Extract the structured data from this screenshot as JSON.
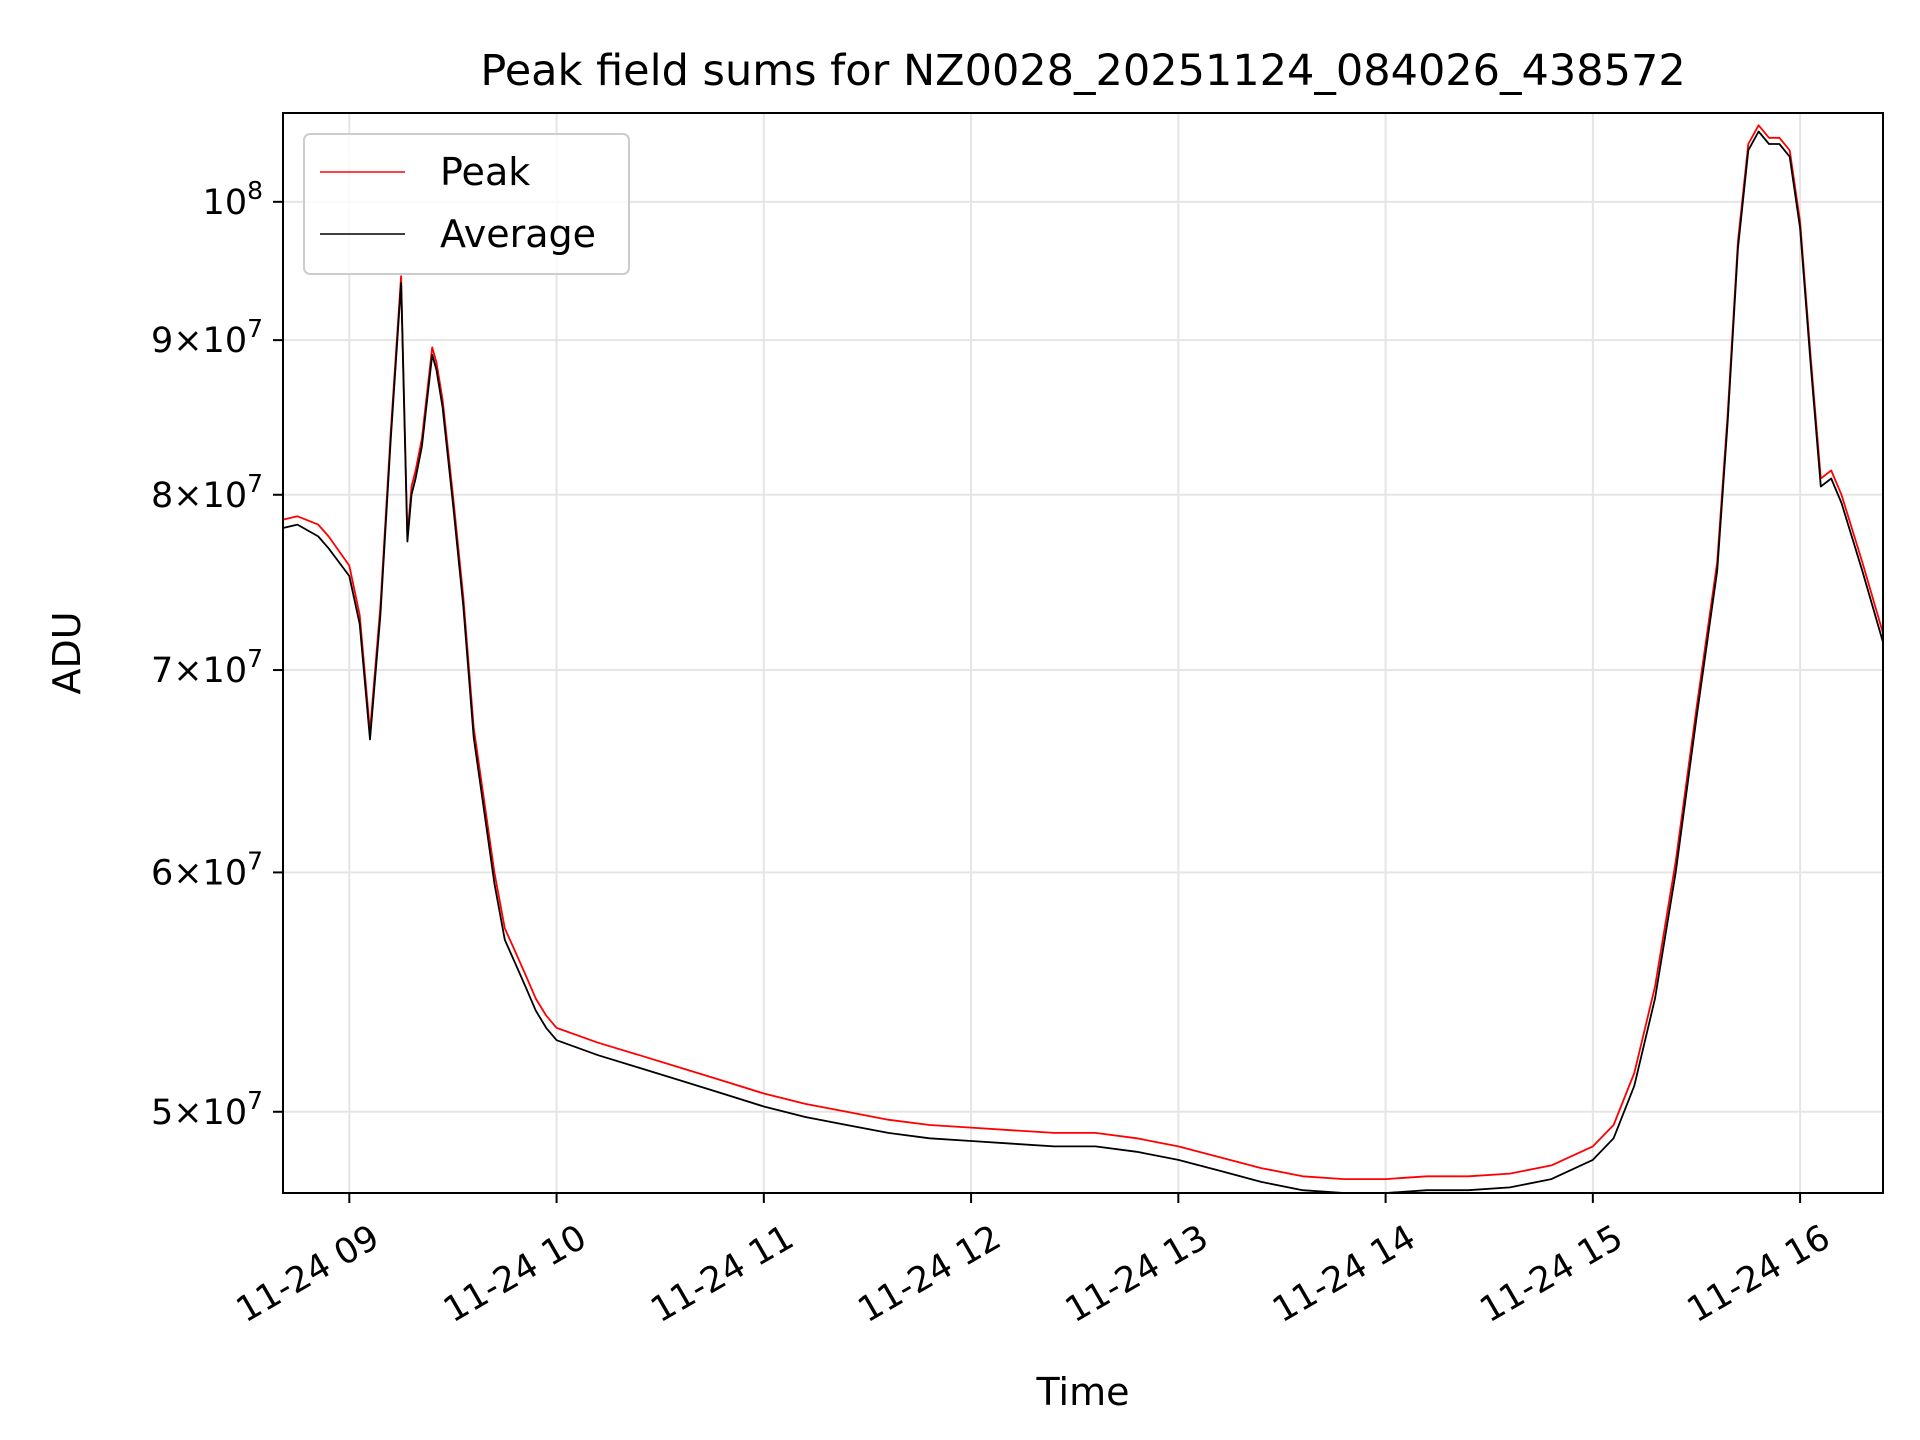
{
  "chart_data": {
    "type": "line",
    "title": "Peak field sums for NZ0028_20251124_084026_438572",
    "xlabel": "Time",
    "ylabel": "ADU",
    "yscale": "log",
    "xlim": [
      8.68,
      16.4
    ],
    "ylim": [
      47000000,
      107000000
    ],
    "grid": true,
    "legend_position": "top-left",
    "x_ticks": [
      {
        "value": 9,
        "label": "11-24 09"
      },
      {
        "value": 10,
        "label": "11-24 10"
      },
      {
        "value": 11,
        "label": "11-24 11"
      },
      {
        "value": 12,
        "label": "11-24 12"
      },
      {
        "value": 13,
        "label": "11-24 13"
      },
      {
        "value": 14,
        "label": "11-24 14"
      },
      {
        "value": 15,
        "label": "11-24 15"
      },
      {
        "value": 16,
        "label": "11-24 16"
      }
    ],
    "y_ticks": [
      {
        "value": 50000000,
        "mant": "5",
        "base": "10",
        "exp": "7"
      },
      {
        "value": 60000000,
        "mant": "6",
        "base": "10",
        "exp": "7"
      },
      {
        "value": 70000000,
        "mant": "7",
        "base": "10",
        "exp": "7"
      },
      {
        "value": 80000000,
        "mant": "8",
        "base": "10",
        "exp": "7"
      },
      {
        "value": 90000000,
        "mant": "9",
        "base": "10",
        "exp": "7"
      },
      {
        "value": 100000000,
        "mant": "",
        "base": "10",
        "exp": "8"
      }
    ],
    "series": [
      {
        "name": "Peak",
        "color": "#ff0000",
        "x": [
          8.68,
          8.75,
          8.85,
          8.9,
          9.0,
          9.05,
          9.1,
          9.15,
          9.2,
          9.25,
          9.28,
          9.3,
          9.32,
          9.35,
          9.4,
          9.42,
          9.45,
          9.5,
          9.55,
          9.6,
          9.7,
          9.75,
          9.8,
          9.85,
          9.9,
          9.95,
          10.0,
          10.2,
          10.4,
          10.6,
          10.8,
          11.0,
          11.2,
          11.4,
          11.6,
          11.8,
          12.0,
          12.2,
          12.4,
          12.6,
          12.8,
          13.0,
          13.2,
          13.4,
          13.6,
          13.8,
          14.0,
          14.2,
          14.4,
          14.6,
          14.8,
          15.0,
          15.1,
          15.2,
          15.3,
          15.4,
          15.5,
          15.6,
          15.65,
          15.7,
          15.75,
          15.8,
          15.85,
          15.9,
          15.95,
          16.0,
          16.05,
          16.1,
          16.15,
          16.2,
          16.3,
          16.4
        ],
        "values": [
          78500000,
          78700000,
          78200000,
          77500000,
          75800000,
          73000000,
          66800000,
          73500000,
          84000000,
          94500000,
          77500000,
          80500000,
          81500000,
          83500000,
          89500000,
          88500000,
          86000000,
          80000000,
          74000000,
          67000000,
          60000000,
          57500000,
          56500000,
          55500000,
          54500000,
          53800000,
          53300000,
          52700000,
          52200000,
          51700000,
          51200000,
          50700000,
          50300000,
          50000000,
          49700000,
          49500000,
          49400000,
          49300000,
          49200000,
          49200000,
          49000000,
          48700000,
          48300000,
          47900000,
          47600000,
          47500000,
          47500000,
          47600000,
          47600000,
          47700000,
          48000000,
          48700000,
          49500000,
          51500000,
          55000000,
          60500000,
          68000000,
          76000000,
          85000000,
          97000000,
          104500000,
          106000000,
          105000000,
          105000000,
          104000000,
          98500000,
          89000000,
          81000000,
          81500000,
          80000000,
          76000000,
          72000000
        ]
      },
      {
        "name": "Average",
        "color": "#000000",
        "x": [
          8.68,
          8.75,
          8.85,
          8.9,
          9.0,
          9.05,
          9.1,
          9.15,
          9.2,
          9.25,
          9.28,
          9.3,
          9.32,
          9.35,
          9.4,
          9.42,
          9.45,
          9.5,
          9.55,
          9.6,
          9.7,
          9.75,
          9.8,
          9.85,
          9.9,
          9.95,
          10.0,
          10.2,
          10.4,
          10.6,
          10.8,
          11.0,
          11.2,
          11.4,
          11.6,
          11.8,
          12.0,
          12.2,
          12.4,
          12.6,
          12.8,
          13.0,
          13.2,
          13.4,
          13.6,
          13.8,
          14.0,
          14.2,
          14.4,
          14.6,
          14.8,
          15.0,
          15.1,
          15.2,
          15.3,
          15.4,
          15.5,
          15.6,
          15.65,
          15.7,
          15.75,
          15.8,
          15.85,
          15.9,
          15.95,
          16.0,
          16.05,
          16.1,
          16.15,
          16.2,
          16.3,
          16.4
        ],
        "values": [
          78000000,
          78200000,
          77500000,
          76800000,
          75200000,
          72500000,
          66400000,
          73000000,
          83500000,
          94000000,
          77200000,
          80000000,
          81000000,
          83000000,
          89000000,
          88000000,
          85500000,
          79500000,
          73500000,
          66500000,
          59500000,
          57000000,
          56000000,
          55000000,
          54000000,
          53300000,
          52800000,
          52200000,
          51700000,
          51200000,
          50700000,
          50200000,
          49800000,
          49500000,
          49200000,
          49000000,
          48900000,
          48800000,
          48700000,
          48700000,
          48500000,
          48200000,
          47800000,
          47400000,
          47100000,
          47000000,
          47000000,
          47100000,
          47100000,
          47200000,
          47500000,
          48200000,
          49000000,
          51000000,
          54500000,
          60000000,
          67500000,
          75500000,
          84500000,
          96500000,
          104000000,
          105500000,
          104500000,
          104500000,
          103500000,
          98000000,
          88500000,
          80500000,
          81000000,
          79500000,
          75500000,
          71500000
        ]
      }
    ]
  }
}
